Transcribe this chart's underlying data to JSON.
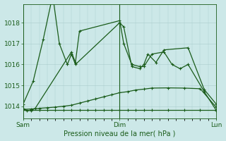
{
  "xlabel": "Pression niveau de la mer( hPa )",
  "bg_color": "#cce8e8",
  "plot_bg_color": "#cce8e8",
  "grid_color": "#aacccc",
  "line_color": "#1a5c1a",
  "tick_label_color": "#1a5c1a",
  "axis_label_color": "#1a5c1a",
  "xlim": [
    0,
    48
  ],
  "ylim": [
    1013.4,
    1018.9
  ],
  "yticks": [
    1014,
    1015,
    1016,
    1017,
    1018
  ],
  "xtick_positions": [
    0,
    24,
    48
  ],
  "xtick_labels": [
    "Sam",
    "Dim",
    "Lun"
  ],
  "series_x": [
    [
      0,
      2.5,
      5,
      7,
      7.5,
      9,
      11,
      12,
      13,
      24,
      25,
      27,
      29,
      30,
      31,
      33,
      35,
      41,
      45,
      48
    ],
    [
      0,
      1,
      2,
      3,
      12,
      13,
      14,
      24,
      25,
      27,
      29,
      30,
      32,
      35,
      37,
      39,
      41,
      45,
      48
    ],
    [
      0,
      2,
      4,
      6,
      8,
      10,
      12,
      14,
      16,
      18,
      20,
      22,
      24,
      26,
      28,
      30,
      32,
      36,
      40,
      44,
      48
    ],
    [
      0,
      2,
      4,
      6,
      8,
      10,
      12,
      14,
      16,
      18,
      20,
      22,
      24,
      26,
      28,
      30,
      32,
      36,
      40,
      44,
      48
    ]
  ],
  "series_y": [
    [
      1014.1,
      1015.2,
      1017.2,
      1019.0,
      1019.1,
      1017.0,
      1016.0,
      1016.5,
      1016.0,
      1018.0,
      1017.8,
      1015.9,
      1015.8,
      1016.0,
      1016.5,
      1016.1,
      1016.7,
      1016.8,
      1014.8,
      1014.1
    ],
    [
      1013.9,
      1013.8,
      1013.8,
      1013.9,
      1016.6,
      1016.1,
      1017.6,
      1018.1,
      1017.0,
      1016.0,
      1015.9,
      1015.9,
      1016.5,
      1016.6,
      1016.0,
      1015.8,
      1016.0,
      1014.7,
      1013.8
    ],
    [
      1013.85,
      1013.87,
      1013.9,
      1013.93,
      1013.96,
      1014.0,
      1014.05,
      1014.15,
      1014.25,
      1014.35,
      1014.45,
      1014.55,
      1014.65,
      1014.7,
      1014.78,
      1014.82,
      1014.87,
      1014.88,
      1014.87,
      1014.84,
      1013.95
    ],
    [
      1013.82,
      1013.82,
      1013.82,
      1013.82,
      1013.82,
      1013.82,
      1013.82,
      1013.82,
      1013.82,
      1013.82,
      1013.82,
      1013.82,
      1013.82,
      1013.82,
      1013.82,
      1013.82,
      1013.82,
      1013.82,
      1013.82,
      1013.82,
      1013.82
    ]
  ],
  "marker": "+",
  "markersize": 3,
  "linewidth": 0.9,
  "vline_x": 24,
  "figsize": [
    3.2,
    2.0
  ],
  "dpi": 100
}
